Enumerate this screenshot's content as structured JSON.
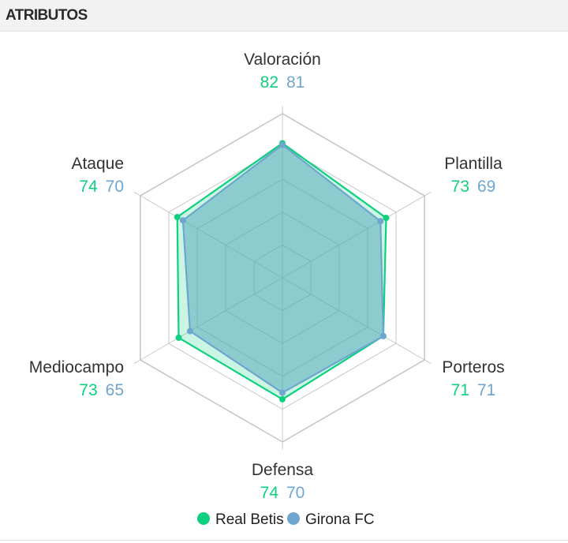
{
  "header": {
    "title": "ATRIBUTOS"
  },
  "colors": {
    "team1": "#0fd07f",
    "team2": "#6fa6cf",
    "grid": "#c8c8c8",
    "fill": "#49b7b1"
  },
  "chart_data": {
    "type": "radar",
    "title": "ATRIBUTOS",
    "axes": [
      "Valoración",
      "Plantilla",
      "Porteros",
      "Defensa",
      "Mediocampo",
      "Ataque"
    ],
    "range": [
      0,
      100
    ],
    "rings": 5,
    "legend_position": "bottom-center",
    "series": [
      {
        "name": "Real Betis",
        "color": "#0fd07f",
        "values": [
          82,
          73,
          71,
          74,
          73,
          74
        ]
      },
      {
        "name": "Girona FC",
        "color": "#6fa6cf",
        "values": [
          81,
          69,
          71,
          70,
          65,
          70
        ]
      }
    ]
  }
}
